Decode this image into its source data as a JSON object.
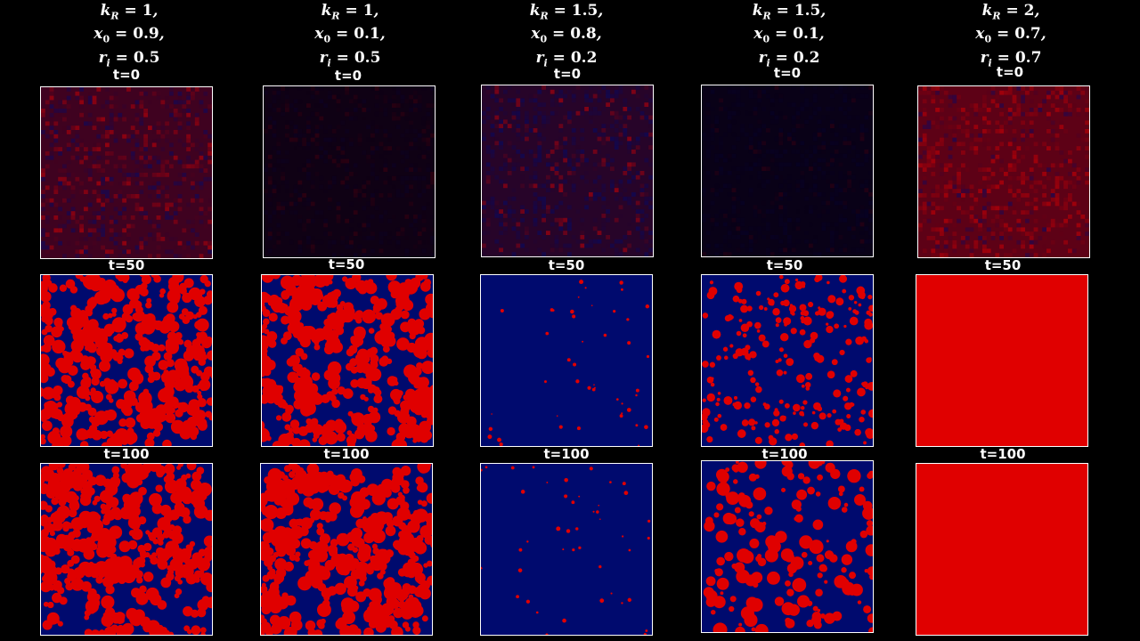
{
  "columns": [
    {
      "kR": "1",
      "x0": "0.9",
      "ri": "0.5"
    },
    {
      "kR": "1",
      "x0": "0.1",
      "ri": "0.5"
    },
    {
      "kR": "1.5",
      "x0": "0.8",
      "ri": "0.2"
    },
    {
      "kR": "1.5",
      "x0": "0.1",
      "ri": "0.2"
    },
    {
      "kR": "2",
      "x0": "0.7",
      "ri": "0.7"
    }
  ],
  "time_labels": [
    "t=0",
    "t=50",
    "t=100"
  ],
  "colors": {
    "background": "#000000",
    "phase_a": "#000a6e",
    "phase_b": "#e00000",
    "border": "#ffffff"
  },
  "panels": [
    {
      "col": 0,
      "time": "t=0",
      "state": "noise",
      "red_fraction": 0.5
    },
    {
      "col": 1,
      "time": "t=0",
      "state": "noise",
      "red_fraction": 0.4
    },
    {
      "col": 2,
      "time": "t=0",
      "state": "noise",
      "red_fraction": 0.3
    },
    {
      "col": 3,
      "time": "t=0",
      "state": "noise",
      "red_fraction": 0.2
    },
    {
      "col": 4,
      "time": "t=0",
      "state": "noise",
      "red_fraction": 0.75
    },
    {
      "col": 0,
      "time": "t=50",
      "state": "labyrinth",
      "red_fraction": 0.5
    },
    {
      "col": 1,
      "time": "t=50",
      "state": "labyrinth",
      "red_fraction": 0.5
    },
    {
      "col": 2,
      "time": "t=50",
      "state": "droplets",
      "red_fraction": 0.02
    },
    {
      "col": 3,
      "time": "t=50",
      "state": "droplets",
      "red_fraction": 0.3
    },
    {
      "col": 4,
      "time": "t=50",
      "state": "uniform",
      "red_fraction": 1.0
    },
    {
      "col": 0,
      "time": "t=100",
      "state": "labyrinth",
      "red_fraction": 0.5
    },
    {
      "col": 1,
      "time": "t=100",
      "state": "labyrinth",
      "red_fraction": 0.5
    },
    {
      "col": 2,
      "time": "t=100",
      "state": "droplets",
      "red_fraction": 0.02
    },
    {
      "col": 3,
      "time": "t=100",
      "state": "droplets",
      "red_fraction": 0.4
    },
    {
      "col": 4,
      "time": "t=100",
      "state": "uniform",
      "red_fraction": 1.0
    }
  ]
}
